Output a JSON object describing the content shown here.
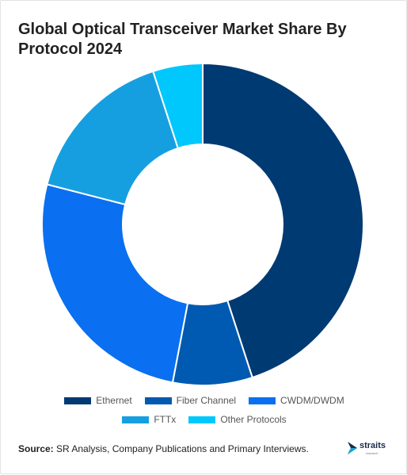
{
  "title": "Global Optical Transceiver Market Share By Protocol 2024",
  "source": {
    "label": "Source:",
    "text": "SR Analysis, Company Publications and Primary Interviews."
  },
  "logo": {
    "name": "straits",
    "sub": "research"
  },
  "chart_data": {
    "type": "pie",
    "variant": "donut",
    "title": "Global Optical Transceiver Market Share By Protocol 2024",
    "categories": [
      "Ethernet",
      "Fiber Channel",
      "CWDM/DWDM",
      "FTTx",
      "Other Protocols"
    ],
    "values": [
      45,
      8,
      26,
      16,
      5
    ],
    "unit": "%",
    "colors": [
      "#003a73",
      "#005ab1",
      "#0a6ff0",
      "#169fe0",
      "#00c7fc"
    ],
    "legend_position": "bottom",
    "start_angle_deg": 0,
    "direction": "clockwise"
  }
}
